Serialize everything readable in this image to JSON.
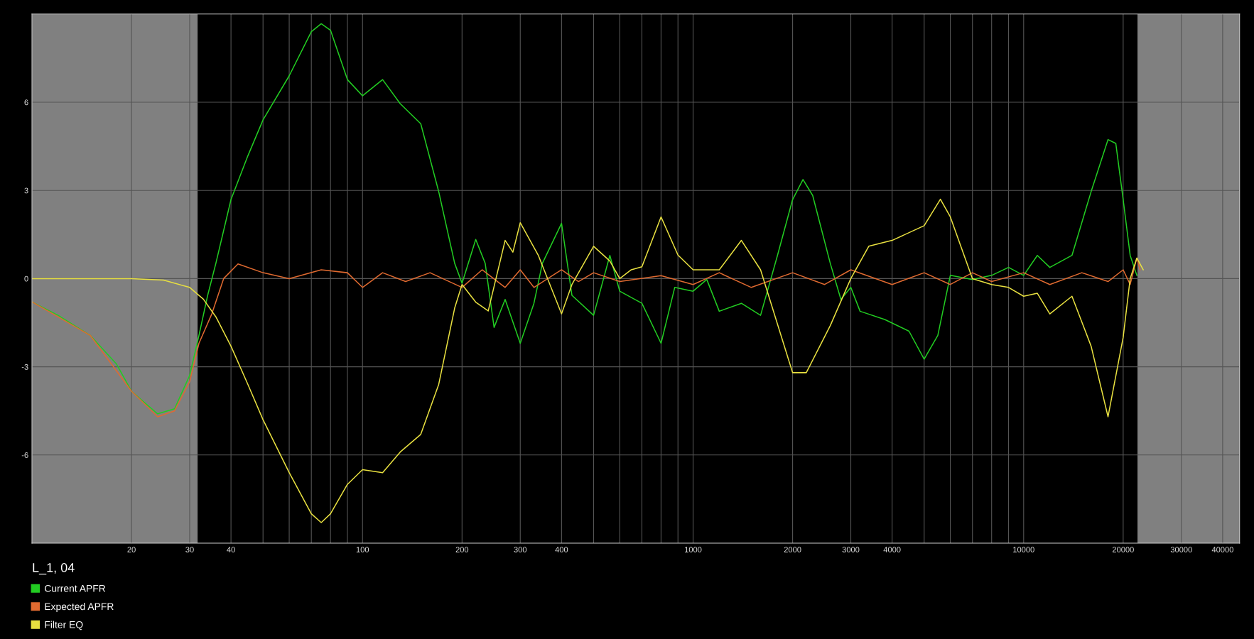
{
  "chart_data": {
    "type": "line",
    "title": "L_1, 04",
    "log": "x",
    "grid": true,
    "legend": "bottom left",
    "marker": "none",
    "line_style": "solid",
    "xlim": [
      10,
      45000
    ],
    "ylim": [
      -9,
      9
    ],
    "yticks": [
      -6,
      -3,
      0,
      3,
      6
    ],
    "xticks": [
      {
        "value": 10,
        "label": null
      },
      20,
      30,
      40,
      {
        "value": 50,
        "label": null
      },
      {
        "value": 60,
        "label": null
      },
      {
        "value": 70,
        "label": null
      },
      {
        "value": 80,
        "label": null
      },
      {
        "value": 90,
        "label": null
      },
      100,
      200,
      300,
      400,
      {
        "value": 500,
        "label": null
      },
      {
        "value": 600,
        "label": null
      },
      {
        "value": 700,
        "label": null
      },
      {
        "value": 800,
        "label": null
      },
      {
        "value": 900,
        "label": null
      },
      1000,
      2000,
      3000,
      4000,
      {
        "value": 5000,
        "label": null
      },
      {
        "value": 6000,
        "label": null
      },
      {
        "value": 7000,
        "label": null
      },
      {
        "value": 8000,
        "label": null
      },
      {
        "value": 9000,
        "label": null
      },
      10000,
      20000,
      30000,
      40000
    ],
    "bands": [
      {
        "axis": "x",
        "from": 10,
        "to": 31.7,
        "color": "#808080"
      },
      {
        "axis": "x",
        "from": 22100,
        "to": 45000,
        "color": "#808080"
      }
    ],
    "series": [
      {
        "name": "Current APFR",
        "color": "#22cc22",
        "x": [
          10,
          12,
          15,
          18,
          20,
          22,
          24,
          27,
          30,
          32,
          34,
          36,
          40,
          45,
          50,
          60,
          70,
          75,
          80,
          90,
          100,
          115,
          130,
          150,
          170,
          190,
          200,
          220,
          235,
          250,
          270,
          300,
          330,
          350,
          400,
          430,
          500,
          560,
          600,
          700,
          800,
          880,
          1000,
          1100,
          1200,
          1400,
          1600,
          1800,
          2000,
          2150,
          2300,
          2600,
          2800,
          3000,
          3200,
          3800,
          4500,
          5000,
          5500,
          6000,
          7000,
          8000,
          9000,
          10000,
          11000,
          12000,
          14000,
          16000,
          18000,
          19000,
          20000,
          21000,
          22000
        ],
        "values": [
          -0.79,
          -1.25,
          -1.93,
          -2.9,
          -3.83,
          -4.24,
          -4.6,
          -4.43,
          -3.29,
          -1.93,
          -0.57,
          0.52,
          2.69,
          4.18,
          5.4,
          6.9,
          8.4,
          8.67,
          8.45,
          6.77,
          6.22,
          6.77,
          5.95,
          5.27,
          2.96,
          0.52,
          -0.16,
          1.33,
          0.52,
          -1.66,
          -0.71,
          -2.2,
          -0.84,
          0.52,
          1.88,
          -0.57,
          -1.25,
          0.79,
          -0.43,
          -0.84,
          -2.2,
          -0.3,
          -0.43,
          -0.03,
          -1.11,
          -0.84,
          -1.25,
          0.79,
          2.69,
          3.37,
          2.83,
          0.52,
          -0.71,
          -0.3,
          -1.11,
          -1.39,
          -1.79,
          -2.74,
          -1.93,
          0.11,
          -0.03,
          0.11,
          0.38,
          0.11,
          0.79,
          0.38,
          0.79,
          2.96,
          4.73,
          4.6,
          2.69,
          0.79,
          0.11
        ]
      },
      {
        "name": "Expected APFR",
        "color": "#e06a30",
        "x": [
          10,
          15,
          20,
          24,
          27,
          30,
          32,
          35,
          38,
          42,
          50,
          60,
          75,
          90,
          100,
          115,
          135,
          160,
          200,
          230,
          270,
          300,
          330,
          400,
          450,
          500,
          600,
          800,
          1000,
          1200,
          1500,
          2000,
          2500,
          3000,
          4000,
          5000,
          6000,
          7000,
          8000,
          10000,
          12000,
          15000,
          18000,
          20000,
          21000,
          22000,
          22500
        ],
        "values": [
          -0.79,
          -1.93,
          -3.83,
          -4.7,
          -4.5,
          -3.5,
          -2.2,
          -1.2,
          0.0,
          0.5,
          0.2,
          0.0,
          0.3,
          0.2,
          -0.3,
          0.2,
          -0.1,
          0.2,
          -0.3,
          0.3,
          -0.3,
          0.3,
          -0.3,
          0.3,
          -0.1,
          0.2,
          -0.1,
          0.1,
          -0.2,
          0.2,
          -0.3,
          0.2,
          -0.2,
          0.3,
          -0.2,
          0.2,
          -0.2,
          0.2,
          -0.1,
          0.2,
          -0.2,
          0.2,
          -0.1,
          0.3,
          -0.2,
          0.7,
          0.3
        ]
      },
      {
        "name": "Filter EQ",
        "color": "#e8e040",
        "x": [
          10,
          20,
          25,
          30,
          33,
          36,
          40,
          45,
          50,
          60,
          70,
          75,
          80,
          90,
          100,
          115,
          130,
          150,
          170,
          190,
          200,
          220,
          240,
          270,
          285,
          300,
          340,
          400,
          430,
          500,
          560,
          600,
          650,
          700,
          800,
          900,
          1000,
          1200,
          1400,
          1600,
          2000,
          2200,
          2600,
          3000,
          3400,
          4000,
          5000,
          5600,
          6000,
          7000,
          8000,
          9000,
          10000,
          11000,
          12000,
          14000,
          16000,
          18000,
          20000,
          21000,
          22000,
          23000
        ],
        "values": [
          0,
          0,
          -0.05,
          -0.3,
          -0.7,
          -1.3,
          -2.3,
          -3.6,
          -4.8,
          -6.6,
          -8.0,
          -8.3,
          -8.0,
          -7.0,
          -6.5,
          -6.6,
          -5.9,
          -5.3,
          -3.6,
          -1.0,
          -0.2,
          -0.8,
          -1.1,
          1.3,
          0.9,
          1.9,
          0.8,
          -1.2,
          -0.2,
          1.1,
          0.6,
          0.0,
          0.3,
          0.4,
          2.1,
          0.8,
          0.3,
          0.3,
          1.3,
          0.3,
          -3.2,
          -3.2,
          -1.6,
          0.0,
          1.1,
          1.3,
          1.8,
          2.7,
          2.1,
          0.0,
          -0.2,
          -0.3,
          -0.6,
          -0.5,
          -1.2,
          -0.6,
          -2.3,
          -4.7,
          -2.0,
          0.0,
          0.7,
          0.3
        ]
      }
    ]
  }
}
